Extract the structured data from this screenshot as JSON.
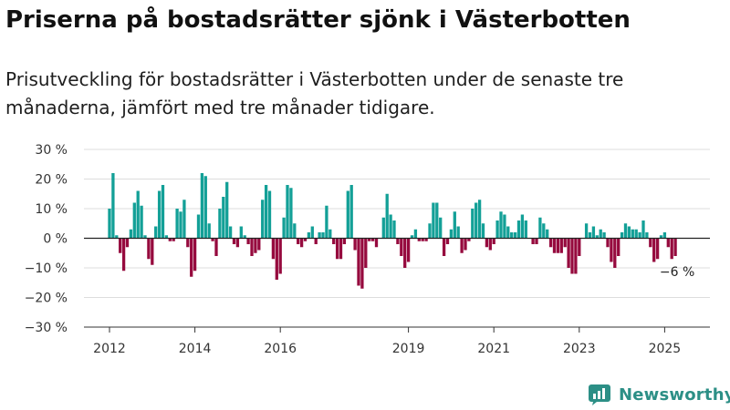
{
  "title": "Priserna på bostadsrätter sjönk i Västerbotten",
  "subtitle": "Prisutveckling för bostadsrätter i Västerbotten under de senaste tre månaderna, jämfört med tre månader tidigare.",
  "brand": {
    "name": "Newsworthy",
    "logo_icon": "newsworthy-chart-logo-icon"
  },
  "colors": {
    "positive": "#13a097",
    "negative": "#960a3e",
    "grid": "#dddddd",
    "axis": "#333333"
  },
  "chart_data": {
    "type": "bar",
    "unit": "%",
    "grid": "horizontal",
    "ylim": [
      -30,
      30
    ],
    "y_ticks": [
      {
        "value": 30,
        "label": "30 %"
      },
      {
        "value": 20,
        "label": "20 %"
      },
      {
        "value": 10,
        "label": "10 %"
      },
      {
        "value": 0,
        "label": "0 %"
      },
      {
        "value": -10,
        "label": "−10 %"
      },
      {
        "value": -20,
        "label": "−20 %"
      },
      {
        "value": -30,
        "label": "−30 %"
      }
    ],
    "x_ticks": [
      {
        "year": 2012,
        "label": "2012"
      },
      {
        "year": 2014,
        "label": "2014"
      },
      {
        "year": 2016,
        "label": "2016"
      },
      {
        "year": 2019,
        "label": "2019"
      },
      {
        "year": 2021,
        "label": "2021"
      },
      {
        "year": 2023,
        "label": "2023"
      },
      {
        "year": 2025,
        "label": "2025"
      }
    ],
    "first_month": "2012-01",
    "values": [
      10,
      22,
      1,
      -5,
      -11,
      -3,
      3,
      12,
      16,
      11,
      1,
      -7,
      -9,
      4,
      16,
      18,
      1,
      -1,
      -1,
      10,
      9,
      13,
      -3,
      -13,
      -11,
      8,
      22,
      21,
      5,
      -1,
      -6,
      10,
      14,
      19,
      4,
      -2,
      -3,
      4,
      1,
      -2,
      -6,
      -5,
      -4,
      13,
      18,
      16,
      -7,
      -14,
      -12,
      7,
      18,
      17,
      5,
      -2,
      -3,
      -1,
      2,
      4,
      -2,
      2,
      2,
      11,
      3,
      -2,
      -7,
      -7,
      -2,
      16,
      18,
      -4,
      -16,
      -17,
      -10,
      -1,
      -1,
      -3,
      0,
      7,
      15,
      8,
      6,
      -2,
      -6,
      -10,
      -8,
      1,
      3,
      -1,
      -1,
      -1,
      5,
      12,
      12,
      7,
      -6,
      -2,
      3,
      9,
      4,
      -5,
      -4,
      -1,
      10,
      12,
      13,
      5,
      -3,
      -4,
      -2,
      6,
      9,
      8,
      4,
      2,
      2,
      6,
      8,
      6,
      0,
      -2,
      -2,
      7,
      5,
      3,
      -3,
      -5,
      -5,
      -5,
      -3,
      -10,
      -12,
      -12,
      -6,
      0,
      5,
      2,
      4,
      1,
      3,
      2,
      -3,
      -8,
      -10,
      -6,
      2,
      5,
      4,
      3,
      3,
      2,
      6,
      2,
      -3,
      -8,
      -7,
      1,
      2,
      -3,
      -7,
      -6
    ],
    "annotations": [
      {
        "text": "−6 %"
      }
    ]
  }
}
